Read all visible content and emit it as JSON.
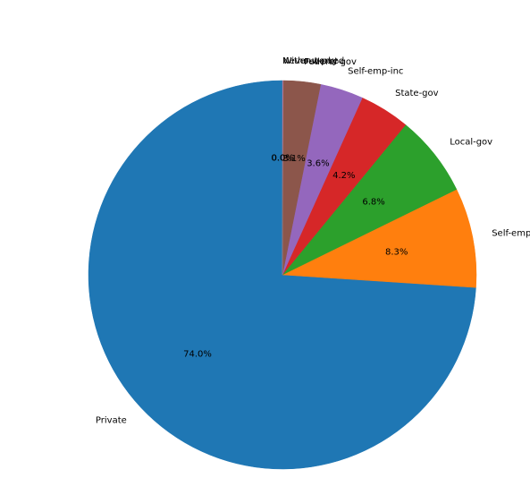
{
  "chart_data": {
    "type": "pie",
    "title": "",
    "slices": [
      {
        "label": "Private",
        "value": 74.0,
        "pct_label": "74.0%",
        "color": "#1f77b4"
      },
      {
        "label": "Self-emp-not-inc",
        "value": 8.3,
        "pct_label": "8.3%",
        "color": "#ff7f0e"
      },
      {
        "label": "Local-gov",
        "value": 6.8,
        "pct_label": "6.8%",
        "color": "#2ca02c"
      },
      {
        "label": "State-gov",
        "value": 4.2,
        "pct_label": "4.2%",
        "color": "#d62728"
      },
      {
        "label": "Self-emp-inc",
        "value": 3.6,
        "pct_label": "3.6%",
        "color": "#9467bd"
      },
      {
        "label": "Federal-gov",
        "value": 3.1,
        "pct_label": "3.1%",
        "color": "#8c564b"
      },
      {
        "label": "Without-pay",
        "value": 0.04,
        "pct_label": "0.0%",
        "color": "#e377c2"
      },
      {
        "label": "Never-worked",
        "value": 0.02,
        "pct_label": "0.0%",
        "color": "#7f7f7f"
      }
    ],
    "start_angle": -90,
    "direction": "counterclockwise",
    "legend": "none"
  }
}
